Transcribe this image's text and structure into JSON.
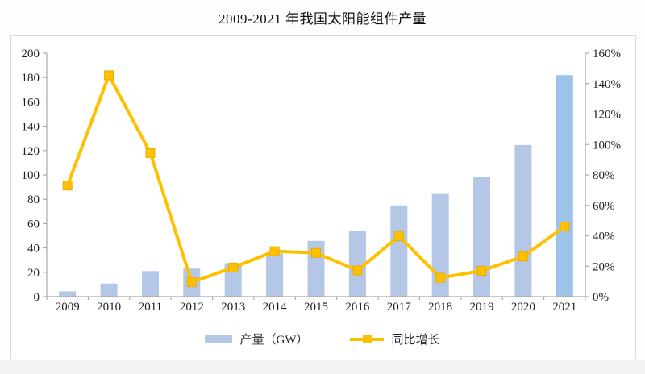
{
  "page": {
    "title": "2009-2021 年我国太阳能组件产量"
  },
  "colors": {
    "bar": "#B4C7E7",
    "bar_highlight": "#9DC3E6",
    "line": "#FFC000",
    "marker_edge": "#E8AE00",
    "axis": "#A9A9A9",
    "label_text": "#1F1F1F",
    "box_border": "#D8D8D8"
  },
  "chart_data": {
    "type": "bar",
    "subtype": "combo bar+line, dual axis",
    "title": "2009-2021 年我国太阳能组件产量",
    "categories": [
      "2009",
      "2010",
      "2011",
      "2012",
      "2013",
      "2014",
      "2015",
      "2016",
      "2017",
      "2018",
      "2019",
      "2020",
      "2021"
    ],
    "series": [
      {
        "name": "产量（GW）",
        "type": "bar",
        "axis": "left",
        "values": [
          4.4,
          10.8,
          21.0,
          23.0,
          27.4,
          35.6,
          45.8,
          53.7,
          75.0,
          84.3,
          98.6,
          124.6,
          182.0
        ]
      },
      {
        "name": "同比增长",
        "type": "line",
        "axis": "right",
        "unit": "%",
        "values": [
          73.0,
          145.5,
          94.4,
          9.5,
          19.1,
          29.9,
          28.7,
          17.2,
          39.7,
          12.4,
          17.0,
          26.4,
          46.1
        ]
      }
    ],
    "left_axis": {
      "min": 0,
      "max": 200,
      "step": 20,
      "tick_labels": [
        "0",
        "20",
        "40",
        "60",
        "80",
        "100",
        "120",
        "140",
        "160",
        "180",
        "200"
      ]
    },
    "right_axis": {
      "min": 0,
      "max": 160,
      "step": 20,
      "tick_labels": [
        "0%",
        "20%",
        "40%",
        "60%",
        "80%",
        "100%",
        "120%",
        "140%",
        "160%"
      ]
    },
    "grid": false,
    "legend_position": "bottom",
    "legend": [
      "产量（GW）",
      "同比增长"
    ]
  }
}
